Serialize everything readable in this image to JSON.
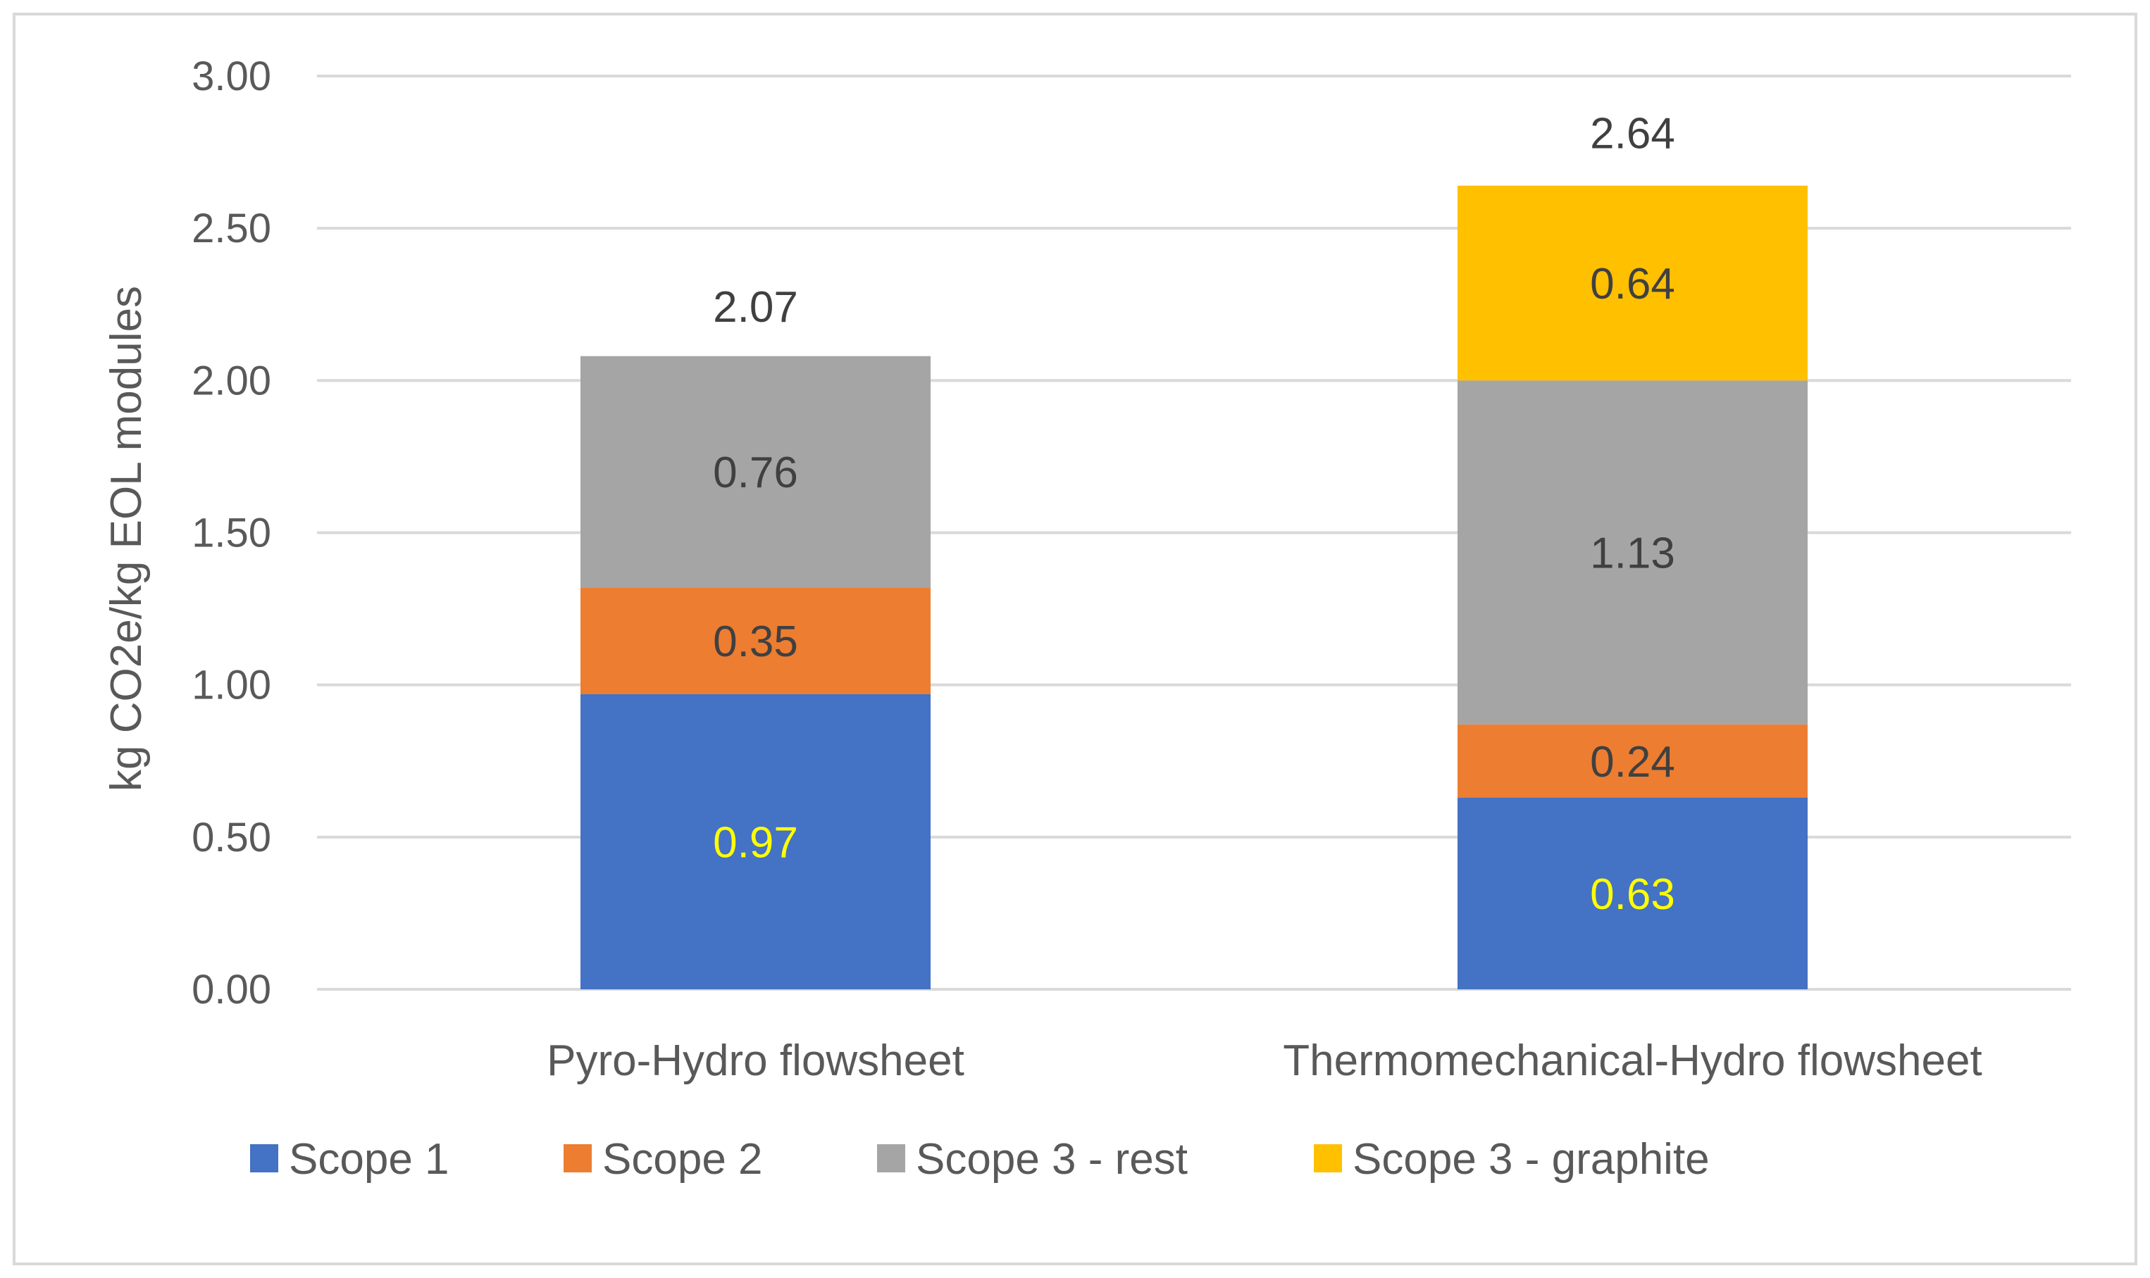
{
  "chart_data": {
    "type": "bar",
    "stacked": true,
    "title": "",
    "xlabel": "",
    "ylabel": "kg CO2e/kg EOL modules",
    "ylim": [
      0,
      3
    ],
    "yticks": [
      "0.00",
      "0.50",
      "1.00",
      "1.50",
      "2.00",
      "2.50",
      "3.00"
    ],
    "grid": true,
    "legend_position": "bottom",
    "categories": [
      "Pyro-Hydro flowsheet",
      "Thermomechanical-Hydro flowsheet"
    ],
    "series": [
      {
        "name": "Scope 1",
        "color": "#4472C4",
        "label_color": "#FFFF00",
        "values": [
          0.97,
          0.63
        ],
        "labels": [
          "0.97",
          "0.63"
        ]
      },
      {
        "name": "Scope 2",
        "color": "#ED7D31",
        "label_color": "#404040",
        "values": [
          0.35,
          0.24
        ],
        "labels": [
          "0.35",
          "0.24"
        ]
      },
      {
        "name": "Scope 3 - rest",
        "color": "#A5A5A5",
        "label_color": "#404040",
        "values": [
          0.76,
          1.13
        ],
        "labels": [
          "0.76",
          "1.13"
        ]
      },
      {
        "name": "Scope 3 - graphite",
        "color": "#FFC000",
        "label_color": "#404040",
        "values": [
          0,
          0.64
        ],
        "labels": [
          "",
          "0.64"
        ]
      }
    ],
    "totals": [
      2.07,
      2.64
    ],
    "total_labels": [
      "2.07",
      "2.64"
    ]
  },
  "colors": {
    "gridline": "#D9D9D9",
    "axis_text": "#595959",
    "total_text": "#404040",
    "frame": "#D9D9D9"
  }
}
